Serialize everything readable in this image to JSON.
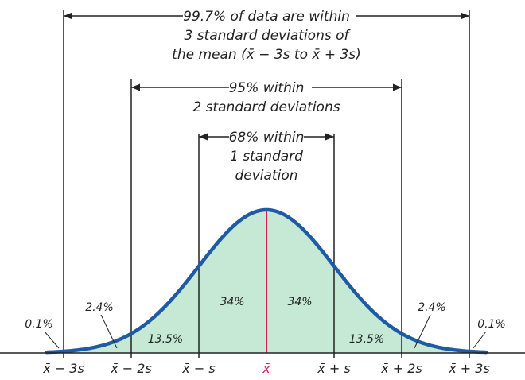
{
  "colors": {
    "curve": "#1f5aa6",
    "fill": "#c6e9d6",
    "mean_line": "#d81b60",
    "lines": "#222222",
    "background": "#ffffff"
  },
  "annotations": {
    "three_sd": [
      "99.7% of data are within",
      "3 standard deviations of",
      "the mean (x̄ − 3s to x̄ + 3s)"
    ],
    "two_sd": [
      "95% within",
      "2 standard deviations"
    ],
    "one_sd": [
      "68% within",
      "1 standard",
      "deviation"
    ]
  },
  "region_percents": {
    "inner_left": "34%",
    "inner_right": "34%",
    "middle_left": "13.5%",
    "middle_right": "13.5%",
    "outer_left": "2.4%",
    "outer_right": "2.4%",
    "tail_left": "0.1%",
    "tail_right": "0.1%"
  },
  "axis_labels": [
    "x̄ − 3s",
    "x̄ − 2s",
    "x̄ − s",
    "x̄",
    "x̄ + s",
    "x̄ + 2s",
    "x̄ + 3s"
  ],
  "chart_data": {
    "type": "area",
    "distribution": "normal",
    "mean": 0,
    "sd": 1,
    "boundaries_sd": [
      -3,
      -2,
      -1,
      0,
      1,
      2,
      3
    ],
    "region_percents": [
      0.1,
      2.4,
      13.5,
      34,
      34,
      13.5,
      2.4,
      0.1
    ]
  }
}
